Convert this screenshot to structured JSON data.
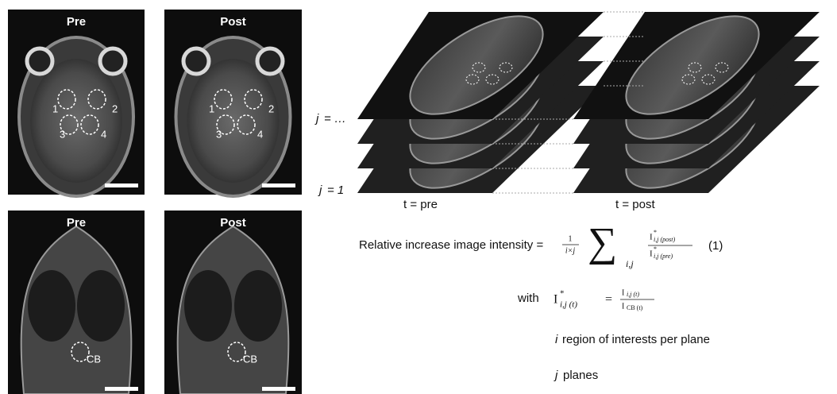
{
  "panels": [
    {
      "label": "Pre",
      "rois": [
        "1",
        "2",
        "3",
        "4"
      ]
    },
    {
      "label": "Post",
      "rois": [
        "1",
        "2",
        "3",
        "4"
      ]
    },
    {
      "label": "Pre",
      "rois": [
        "CB"
      ]
    },
    {
      "label": "Post",
      "rois": [
        "CB"
      ]
    }
  ],
  "stack": {
    "plane_var": "j",
    "plane_labels": [
      "= …",
      "= 1"
    ],
    "time_labels": [
      "t = pre",
      "t = post"
    ]
  },
  "equation": {
    "lhs": "Relative increase image intensity =",
    "coef_num": "1",
    "coef_den": "i×j",
    "sum": "∑",
    "sum_index": "i,j",
    "ratio_num": {
      "base": "I",
      "sup": "*",
      "sub": "i,j (post)"
    },
    "ratio_den": {
      "base": "I",
      "sup": "*",
      "sub": "i,j (pre)"
    },
    "number": "(1)"
  },
  "definition": {
    "with": "with",
    "lhs": {
      "base": "I",
      "sup": "*",
      "sub": "i,j (t)"
    },
    "eq": "=",
    "num": {
      "base": "I",
      "sub": "i,j (t)"
    },
    "den": {
      "base": "I",
      "sub": "CB (t)"
    }
  },
  "notes": [
    {
      "var": "i",
      "text": "region of interests per plane"
    },
    {
      "var": "j",
      "text": "planes"
    }
  ]
}
